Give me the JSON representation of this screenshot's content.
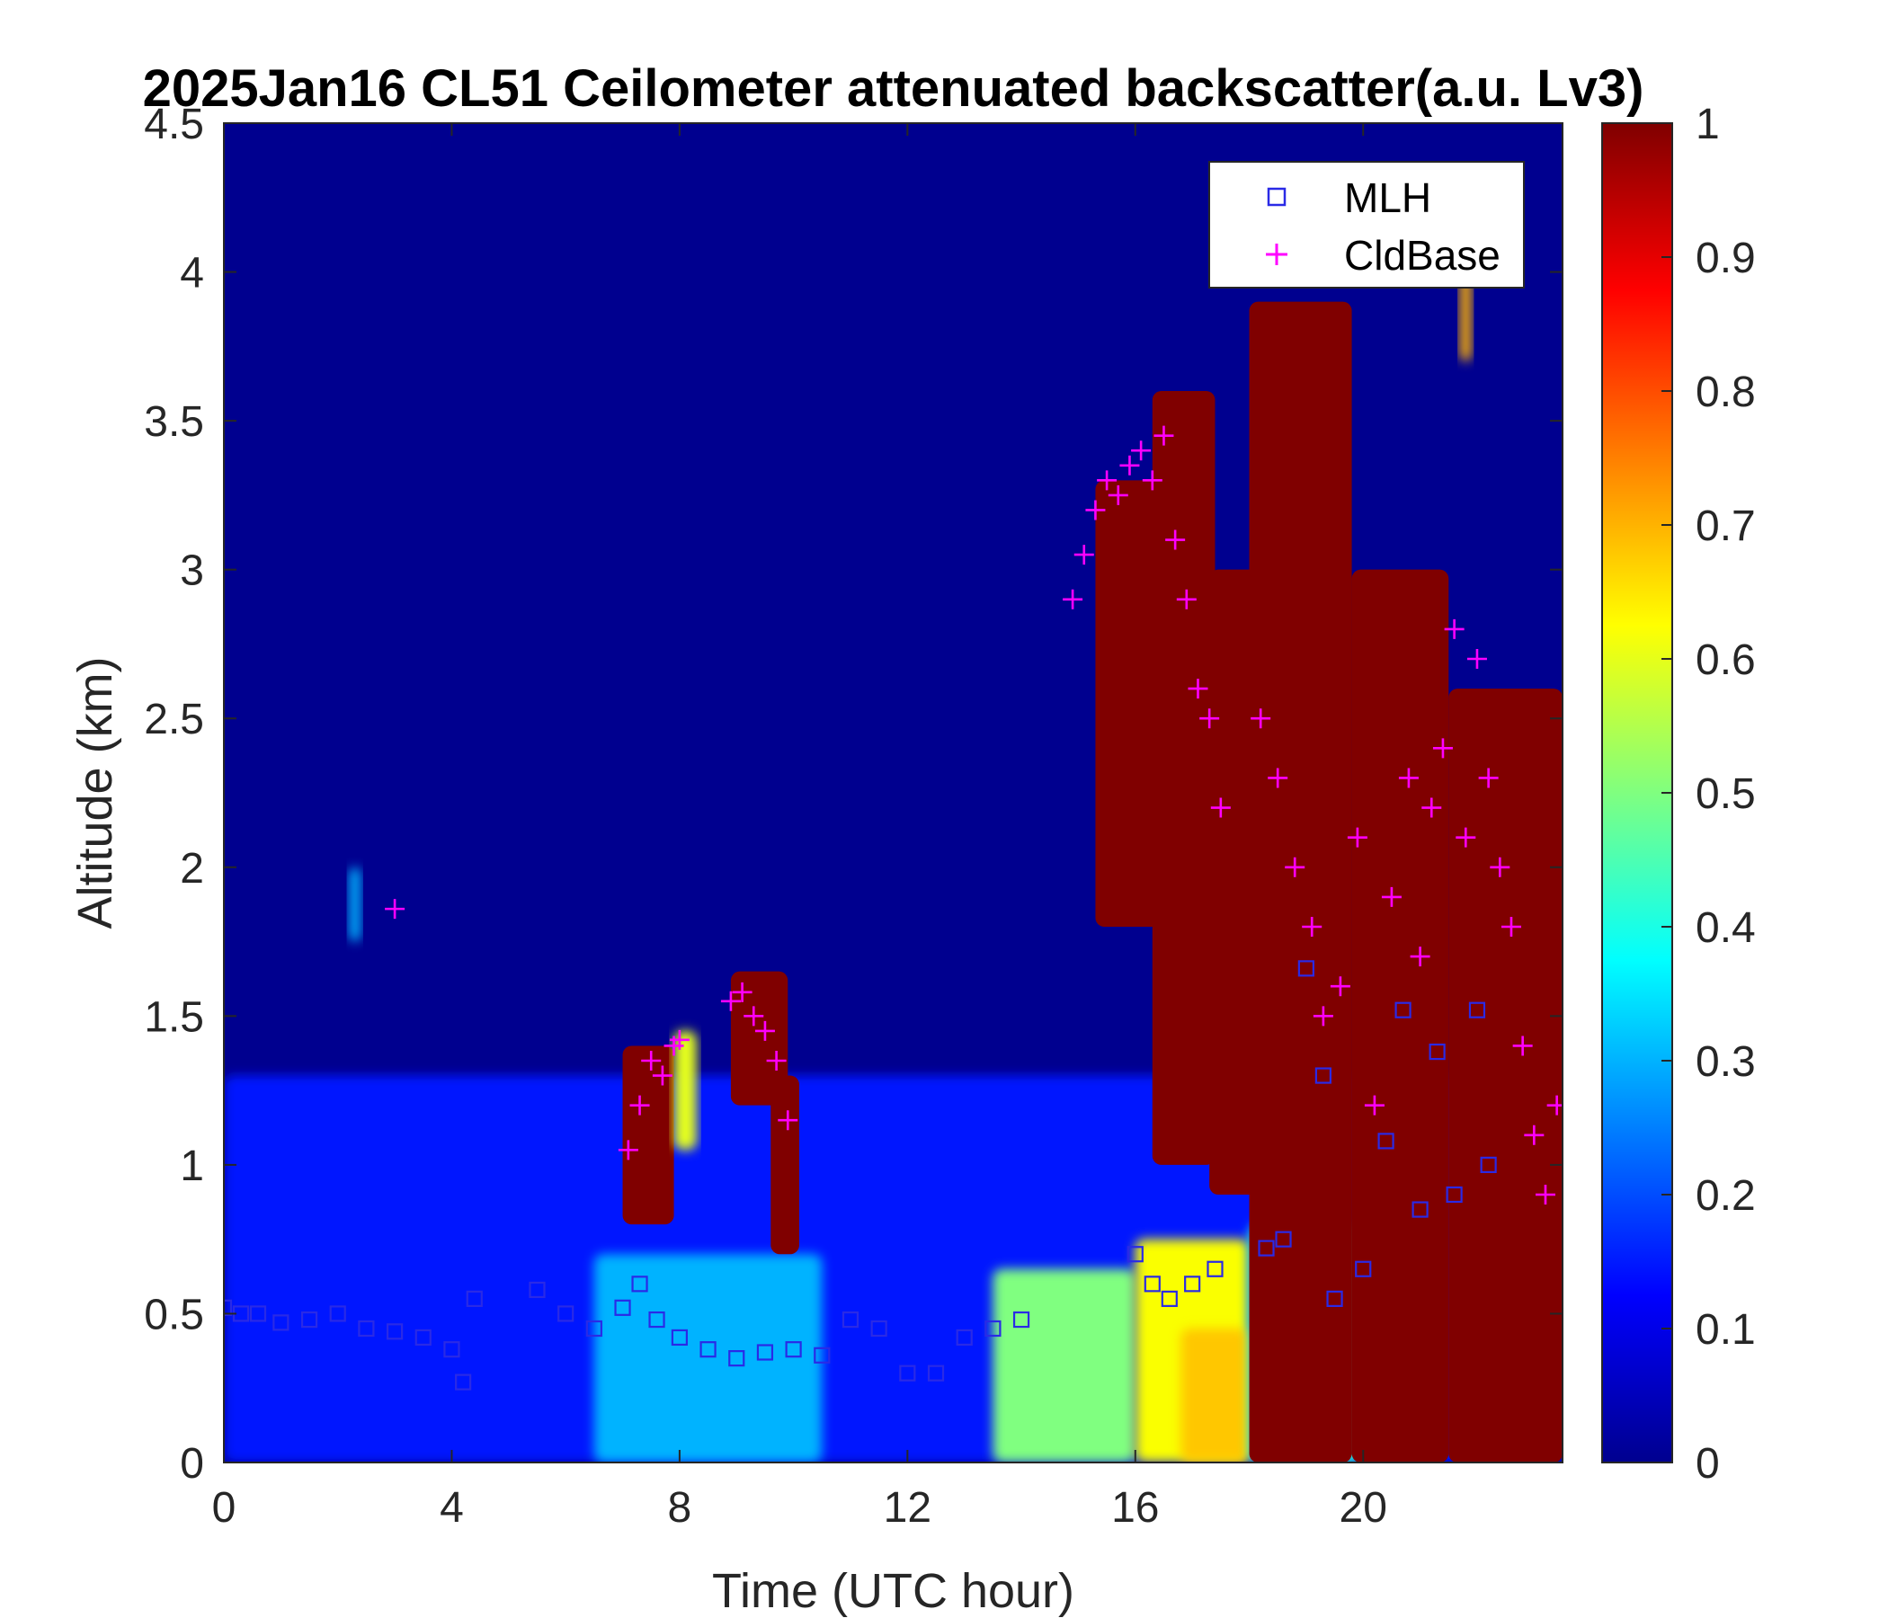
{
  "colors": {
    "jet": [
      "#00008f",
      "#0000ff",
      "#00ffff",
      "#ffff00",
      "#ff0000",
      "#800000"
    ],
    "mlh": "#2a2ae6",
    "cldbase": "#ff00ff",
    "background": "#00008f"
  },
  "chart_data": {
    "type": "heatmap",
    "title": "2025Jan16 CL51 Ceilometer attenuated backscatter(a.u. Lv3)",
    "xlabel": "Time (UTC hour)",
    "ylabel": "Altitude (km)",
    "xlim": [
      0,
      23.5
    ],
    "ylim": [
      0,
      4.5
    ],
    "xticks": [
      0,
      4,
      8,
      12,
      16,
      20
    ],
    "yticks": [
      0,
      0.5,
      1,
      1.5,
      2,
      2.5,
      3,
      3.5,
      4,
      4.5
    ],
    "yticklabels": [
      "0",
      "0.5",
      "1",
      "1.5",
      "2",
      "2.5",
      "3",
      "3.5",
      "4",
      "4.5"
    ],
    "colorbar": {
      "range": [
        0,
        1
      ],
      "ticks": [
        0,
        0.1,
        0.2,
        0.3,
        0.4,
        0.5,
        0.6,
        0.7,
        0.8,
        0.9,
        1
      ],
      "ticklabels": [
        "0",
        "0.1",
        "0.2",
        "0.3",
        "0.4",
        "0.5",
        "0.6",
        "0.7",
        "0.8",
        "0.9",
        "1"
      ]
    },
    "legend": {
      "location": "top-right",
      "entries": [
        {
          "label": "MLH",
          "marker": "square",
          "color": "#2a2ae6"
        },
        {
          "label": "CldBase",
          "marker": "plus",
          "color": "#ff00ff"
        }
      ]
    },
    "features": [
      {
        "x0": 0,
        "x1": 23.5,
        "y0": 0,
        "y1": 1.3,
        "value": 0.15
      },
      {
        "x0": 6.5,
        "x1": 10.5,
        "y0": 0,
        "y1": 0.7,
        "value": 0.3
      },
      {
        "x0": 13.5,
        "x1": 16,
        "y0": 0,
        "y1": 0.65,
        "value": 0.5
      },
      {
        "x0": 16,
        "x1": 18,
        "y0": 0,
        "y1": 0.75,
        "value": 0.62
      },
      {
        "x0": 16.8,
        "x1": 18,
        "y0": 0,
        "y1": 0.45,
        "value": 0.68
      },
      {
        "x0": 18,
        "x1": 20,
        "y0": 0,
        "y1": 0.8,
        "value": 0.42
      },
      {
        "x0": 2.2,
        "x1": 2.4,
        "y0": 1.75,
        "y1": 2.0,
        "value": 0.3
      },
      {
        "x0": 7.0,
        "x1": 7.9,
        "y0": 0.8,
        "y1": 1.4,
        "value": 1.0
      },
      {
        "x0": 7.9,
        "x1": 8.3,
        "y0": 1.05,
        "y1": 1.45,
        "value": 0.6
      },
      {
        "x0": 8.9,
        "x1": 9.9,
        "y0": 1.2,
        "y1": 1.65,
        "value": 1.0
      },
      {
        "x0": 9.6,
        "x1": 10.1,
        "y0": 0.7,
        "y1": 1.3,
        "value": 1.0
      },
      {
        "x0": 15.3,
        "x1": 16.6,
        "y0": 1.8,
        "y1": 3.3,
        "value": 1.0
      },
      {
        "x0": 16.3,
        "x1": 17.4,
        "y0": 1.0,
        "y1": 3.6,
        "value": 1.0
      },
      {
        "x0": 17.3,
        "x1": 18.2,
        "y0": 0.9,
        "y1": 3.0,
        "value": 1.0
      },
      {
        "x0": 18.0,
        "x1": 19.8,
        "y0": 0,
        "y1": 3.9,
        "value": 1.0
      },
      {
        "x0": 19.8,
        "x1": 21.5,
        "y0": 0,
        "y1": 3.0,
        "value": 1.0
      },
      {
        "x0": 21.5,
        "x1": 23.5,
        "y0": 0,
        "y1": 2.6,
        "value": 1.0
      },
      {
        "x0": 21.7,
        "x1": 21.9,
        "y0": 3.7,
        "y1": 4.0,
        "value": 0.7
      }
    ],
    "series": [
      {
        "name": "MLH",
        "marker": "square",
        "x": [
          0.0,
          0.3,
          0.6,
          1.0,
          1.5,
          2.0,
          2.5,
          3.0,
          3.5,
          4.0,
          4.2,
          4.4,
          5.5,
          6.0,
          6.5,
          7.0,
          7.3,
          7.6,
          8.0,
          8.5,
          9.0,
          9.5,
          10.0,
          10.5,
          11.0,
          11.5,
          12.0,
          12.5,
          13.0,
          13.5,
          14.0,
          16.0,
          16.3,
          16.6,
          17.0,
          17.4,
          18.3,
          18.6,
          19.0,
          19.3,
          19.5,
          20.0,
          20.4,
          20.7,
          21.0,
          21.3,
          21.6,
          22.0,
          22.2
        ],
        "y": [
          0.52,
          0.5,
          0.5,
          0.47,
          0.48,
          0.5,
          0.45,
          0.44,
          0.42,
          0.38,
          0.27,
          0.55,
          0.58,
          0.5,
          0.45,
          0.52,
          0.6,
          0.48,
          0.42,
          0.38,
          0.35,
          0.37,
          0.38,
          0.36,
          0.48,
          0.45,
          0.3,
          0.3,
          0.42,
          0.45,
          0.48,
          0.7,
          0.6,
          0.55,
          0.6,
          0.65,
          0.72,
          0.75,
          1.66,
          1.3,
          0.55,
          0.65,
          1.08,
          1.52,
          0.85,
          1.38,
          0.9,
          1.52,
          1.0
        ],
        "values": [
          0.52,
          0.5,
          0.5,
          0.47,
          0.48,
          0.5,
          0.45,
          0.44,
          0.42,
          0.38,
          0.27,
          0.55,
          0.58,
          0.5,
          0.45,
          0.52,
          0.6,
          0.48,
          0.42,
          0.38,
          0.35,
          0.37,
          0.38,
          0.36,
          0.48,
          0.45,
          0.3,
          0.3,
          0.42,
          0.45,
          0.48,
          0.7,
          0.6,
          0.55,
          0.6,
          0.65,
          0.72,
          0.75,
          1.66,
          1.3,
          0.55,
          0.65,
          1.08,
          1.52,
          0.85,
          1.38,
          0.9,
          1.52,
          1.0
        ]
      },
      {
        "name": "CldBase",
        "marker": "plus",
        "x": [
          3.0,
          7.1,
          7.3,
          7.5,
          7.7,
          7.9,
          8.0,
          8.9,
          9.1,
          9.3,
          9.5,
          9.7,
          9.9,
          14.9,
          15.1,
          15.3,
          15.5,
          15.7,
          15.9,
          16.1,
          16.3,
          16.5,
          16.7,
          16.9,
          17.1,
          17.3,
          17.5,
          18.2,
          18.5,
          18.8,
          19.1,
          19.3,
          19.6,
          19.9,
          20.2,
          20.5,
          20.8,
          21.0,
          21.2,
          21.4,
          21.6,
          21.8,
          22.0,
          22.2,
          22.4,
          22.6,
          22.8,
          23.0,
          23.2,
          23.4
        ],
        "y": [
          1.86,
          1.05,
          1.2,
          1.35,
          1.3,
          1.4,
          1.42,
          1.55,
          1.58,
          1.5,
          1.45,
          1.35,
          1.15,
          2.9,
          3.05,
          3.2,
          3.3,
          3.25,
          3.35,
          3.4,
          3.3,
          3.45,
          3.1,
          2.9,
          2.6,
          2.5,
          2.2,
          2.5,
          2.3,
          2.0,
          1.8,
          1.5,
          1.6,
          2.1,
          1.2,
          1.9,
          2.3,
          1.7,
          2.2,
          2.4,
          2.8,
          2.1,
          2.7,
          2.3,
          2.0,
          1.8,
          1.4,
          1.1,
          0.9,
          1.2
        ],
        "values": [
          1.86,
          1.05,
          1.2,
          1.35,
          1.3,
          1.4,
          1.42,
          1.55,
          1.58,
          1.5,
          1.45,
          1.35,
          1.15,
          2.9,
          3.05,
          3.2,
          3.3,
          3.25,
          3.35,
          3.4,
          3.3,
          3.45,
          3.1,
          2.9,
          2.6,
          2.5,
          2.2,
          2.5,
          2.3,
          2.0,
          1.8,
          1.5,
          1.6,
          2.1,
          1.2,
          1.9,
          2.3,
          1.7,
          2.2,
          2.4,
          2.8,
          2.1,
          2.7,
          2.3,
          2.0,
          1.8,
          1.4,
          1.1,
          0.9,
          1.2
        ]
      }
    ]
  }
}
